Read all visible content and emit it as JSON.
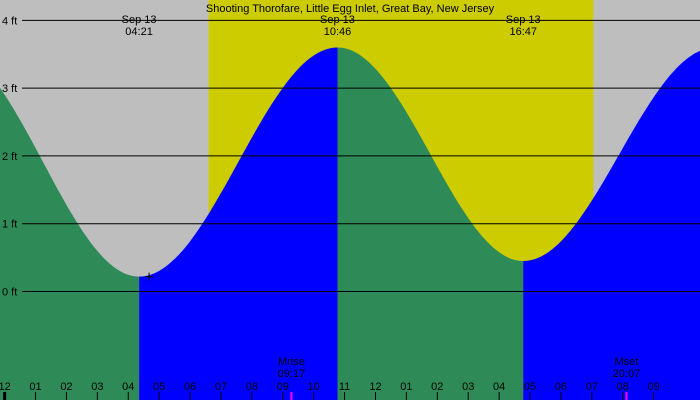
{
  "chart_data": {
    "type": "area",
    "title": "Shooting Thorofare, Little Egg Inlet, Great Bay, New Jersey",
    "xlabel": "",
    "ylabel": "",
    "unit": "ft",
    "ylim": [
      -1.6,
      4.3
    ],
    "y_ticks": [
      {
        "value": 0,
        "label": "0 ft"
      },
      {
        "value": 1,
        "label": "1 ft"
      },
      {
        "value": 2,
        "label": "2 ft"
      },
      {
        "value": 3,
        "label": "3 ft"
      },
      {
        "value": 4,
        "label": "4 ft"
      }
    ],
    "xlim_hours": [
      -0.15,
      22.5
    ],
    "x_ticks": [
      {
        "hour": -1,
        "label": "11"
      },
      {
        "hour": 0,
        "label": "12"
      },
      {
        "hour": 1,
        "label": "01"
      },
      {
        "hour": 2,
        "label": "02"
      },
      {
        "hour": 3,
        "label": "03"
      },
      {
        "hour": 4,
        "label": "04"
      },
      {
        "hour": 5,
        "label": "05"
      },
      {
        "hour": 6,
        "label": "06"
      },
      {
        "hour": 7,
        "label": "07"
      },
      {
        "hour": 8,
        "label": "08"
      },
      {
        "hour": 9,
        "label": "09"
      },
      {
        "hour": 10,
        "label": "10"
      },
      {
        "hour": 11,
        "label": "11"
      },
      {
        "hour": 12,
        "label": "12"
      },
      {
        "hour": 13,
        "label": "01"
      },
      {
        "hour": 14,
        "label": "02"
      },
      {
        "hour": 15,
        "label": "03"
      },
      {
        "hour": 16,
        "label": "04"
      },
      {
        "hour": 17,
        "label": "05"
      },
      {
        "hour": 18,
        "label": "06"
      },
      {
        "hour": 19,
        "label": "07"
      },
      {
        "hour": 20,
        "label": "08"
      },
      {
        "hour": 21,
        "label": "09"
      }
    ],
    "extremes": [
      {
        "date": "Sep 13",
        "time": "04:21",
        "hour": 4.35,
        "height_ft": 0.22,
        "kind": "low"
      },
      {
        "date": "Sep 13",
        "time": "10:46",
        "hour": 10.77,
        "height_ft": 3.6,
        "kind": "high"
      },
      {
        "date": "Sep 13",
        "time": "16:47",
        "hour": 16.78,
        "height_ft": 0.45,
        "kind": "low"
      }
    ],
    "start_level_ft": 3.35,
    "end_level_ft": 2.95,
    "daylight_hours": [
      6.6,
      19.05
    ],
    "moon_events": [
      {
        "label": "Mrise",
        "time": "09:17",
        "hour": 9.28
      },
      {
        "label": "Mset",
        "time": "20:07",
        "hour": 20.12
      }
    ],
    "colors": {
      "night": "#bebebe",
      "day": "#cccc00",
      "falling": "#2e8b57",
      "rising": "#0000ff",
      "moon_tick": "#ff00ff",
      "text": "#000000"
    }
  }
}
